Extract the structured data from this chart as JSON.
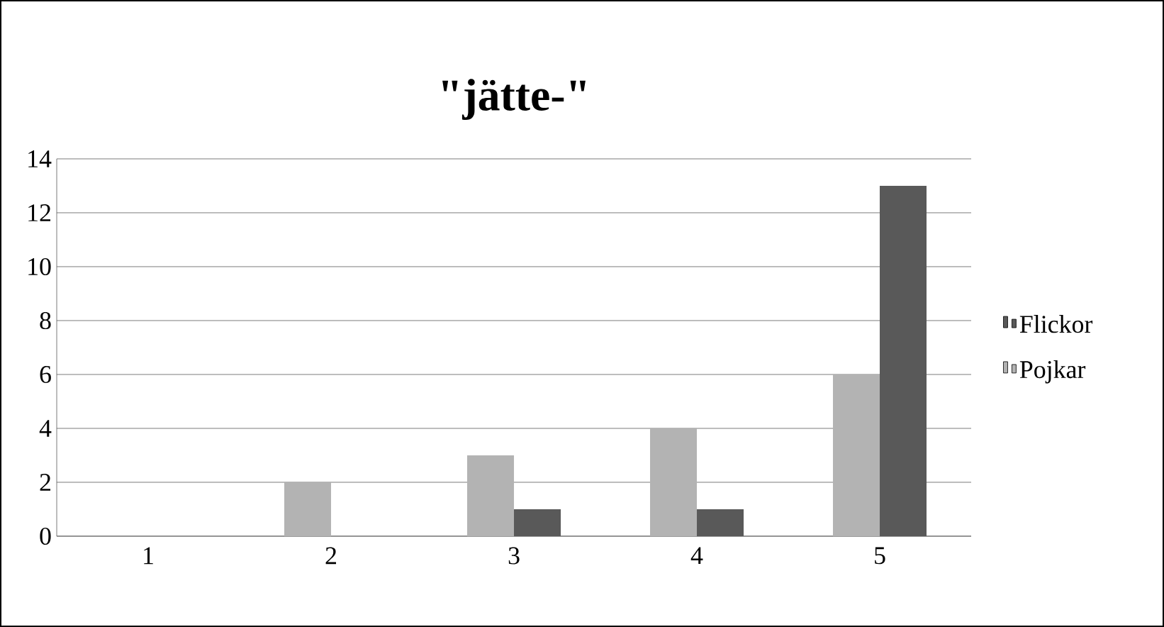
{
  "chart_data": {
    "type": "bar",
    "title": "\"jätte-\"",
    "categories": [
      "1",
      "2",
      "3",
      "4",
      "5"
    ],
    "series": [
      {
        "name": "Pojkar",
        "color": "#b3b3b3",
        "values": [
          0,
          2,
          3,
          4,
          6
        ]
      },
      {
        "name": "Flickor",
        "color": "#595959",
        "values": [
          0,
          0,
          1,
          1,
          13
        ]
      }
    ],
    "ylim": [
      0,
      14
    ],
    "yticks": [
      0,
      2,
      4,
      6,
      8,
      10,
      12,
      14
    ],
    "grid": "y",
    "legend": "right"
  }
}
